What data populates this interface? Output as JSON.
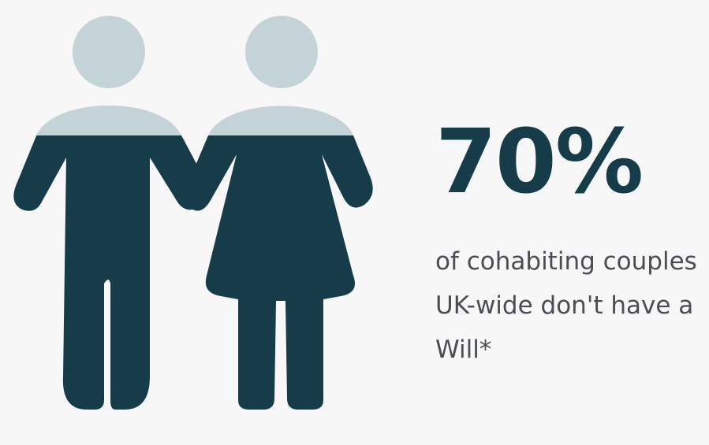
{
  "colors": {
    "background": "#f7f7f8",
    "figure_dark": "#163c4a",
    "figure_light": "#c4d3d7",
    "stat_text": "#163c4a",
    "caption_text": "#4a4d52"
  },
  "illustration": {
    "icon": "couple-holding-hands-icon",
    "fill_fraction": 0.7
  },
  "stat": {
    "value": "70%",
    "caption": "of cohabiting couples\nUK-wide don't have a\nWill*"
  }
}
